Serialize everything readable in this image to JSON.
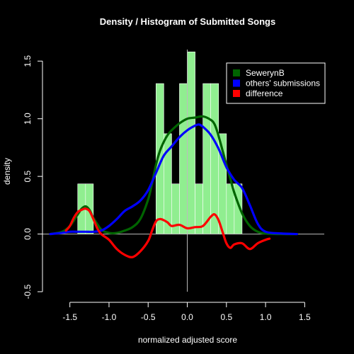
{
  "chart_data": {
    "type": "histogram",
    "title": "Density / Histogram of Submitted Songs",
    "xlabel": "normalized adjusted score",
    "ylabel": "density",
    "xlim": [
      -1.85,
      1.75
    ],
    "ylim": [
      -0.5,
      1.6
    ],
    "x_ticks": [
      -1.5,
      -1.0,
      -0.5,
      0.0,
      0.5,
      1.0,
      1.5
    ],
    "x_tick_labels": [
      "-1.5",
      "-1.0",
      "-0.5",
      "0.0",
      "0.5",
      "1.0",
      "1.5"
    ],
    "y_ticks": [
      -0.5,
      0.0,
      0.5,
      1.0,
      1.5
    ],
    "y_tick_labels": [
      "-0.5",
      "0.0",
      "0.5",
      "1.0",
      "1.5"
    ],
    "histogram": {
      "color": "#90EE90",
      "bin_width": 0.1,
      "bins": [
        {
          "x0": -1.4,
          "x1": -1.3,
          "density": 0.435
        },
        {
          "x0": -1.3,
          "x1": -1.2,
          "density": 0.435
        },
        {
          "x0": -0.4,
          "x1": -0.3,
          "density": 1.305
        },
        {
          "x0": -0.3,
          "x1": -0.2,
          "density": 0.87
        },
        {
          "x0": -0.2,
          "x1": -0.1,
          "density": 0.435
        },
        {
          "x0": -0.1,
          "x1": 0.0,
          "density": 1.305
        },
        {
          "x0": 0.0,
          "x1": 0.1,
          "density": 1.58
        },
        {
          "x0": 0.1,
          "x1": 0.2,
          "density": 0.435
        },
        {
          "x0": 0.2,
          "x1": 0.3,
          "density": 1.305
        },
        {
          "x0": 0.3,
          "x1": 0.4,
          "density": 1.305
        },
        {
          "x0": 0.4,
          "x1": 0.5,
          "density": 0.87
        },
        {
          "x0": 0.5,
          "x1": 0.6,
          "density": 0.435
        },
        {
          "x0": 0.6,
          "x1": 0.7,
          "density": 0.435
        }
      ]
    },
    "series": [
      {
        "name": "SewerynB",
        "color": "#006400",
        "x": [
          -1.75,
          -1.6,
          -1.5,
          -1.4,
          -1.35,
          -1.3,
          -1.25,
          -1.2,
          -1.1,
          -1.0,
          -0.9,
          -0.8,
          -0.7,
          -0.6,
          -0.5,
          -0.45,
          -0.4,
          -0.35,
          -0.3,
          -0.25,
          -0.2,
          -0.1,
          0.0,
          0.1,
          0.2,
          0.3,
          0.35,
          0.4,
          0.5,
          0.55,
          0.6,
          0.7,
          0.8,
          0.9,
          1.0,
          1.2,
          1.4
        ],
        "y": [
          0.0,
          0.02,
          0.07,
          0.17,
          0.22,
          0.24,
          0.21,
          0.14,
          0.04,
          0.01,
          0.01,
          0.03,
          0.06,
          0.13,
          0.3,
          0.44,
          0.6,
          0.72,
          0.8,
          0.86,
          0.9,
          0.96,
          1.0,
          1.01,
          1.02,
          0.99,
          0.95,
          0.85,
          0.6,
          0.48,
          0.36,
          0.18,
          0.07,
          0.02,
          0.005,
          0.0,
          0.0
        ]
      },
      {
        "name": "others' submissions",
        "color": "#0000FF",
        "x": [
          -1.75,
          -1.6,
          -1.5,
          -1.4,
          -1.3,
          -1.2,
          -1.1,
          -1.0,
          -0.9,
          -0.8,
          -0.7,
          -0.6,
          -0.5,
          -0.4,
          -0.3,
          -0.2,
          -0.1,
          0.0,
          0.1,
          0.15,
          0.2,
          0.3,
          0.4,
          0.5,
          0.6,
          0.7,
          0.8,
          0.9,
          1.0,
          1.2,
          1.4
        ],
        "y": [
          0.0,
          0.01,
          0.02,
          0.02,
          0.02,
          0.02,
          0.03,
          0.07,
          0.13,
          0.2,
          0.24,
          0.29,
          0.38,
          0.53,
          0.68,
          0.76,
          0.84,
          0.9,
          0.94,
          0.95,
          0.93,
          0.86,
          0.74,
          0.58,
          0.47,
          0.4,
          0.25,
          0.09,
          0.02,
          0.005,
          0.0
        ]
      },
      {
        "name": "difference",
        "color": "#FF0000",
        "x": [
          -1.55,
          -1.5,
          -1.45,
          -1.4,
          -1.35,
          -1.3,
          -1.25,
          -1.2,
          -1.15,
          -1.1,
          -1.0,
          -0.9,
          -0.8,
          -0.7,
          -0.6,
          -0.5,
          -0.45,
          -0.4,
          -0.35,
          -0.3,
          -0.25,
          -0.2,
          -0.1,
          0.0,
          0.1,
          0.2,
          0.3,
          0.35,
          0.4,
          0.45,
          0.5,
          0.55,
          0.6,
          0.7,
          0.8,
          0.9,
          1.0,
          1.05
        ],
        "y": [
          0.03,
          0.07,
          0.14,
          0.19,
          0.21,
          0.22,
          0.2,
          0.13,
          0.05,
          0.0,
          -0.05,
          -0.13,
          -0.18,
          -0.2,
          -0.15,
          -0.06,
          0.03,
          0.11,
          0.13,
          0.12,
          0.1,
          0.07,
          0.08,
          0.05,
          0.06,
          0.07,
          0.15,
          0.17,
          0.12,
          0.02,
          -0.08,
          -0.12,
          -0.09,
          -0.08,
          -0.13,
          -0.08,
          -0.05,
          -0.04
        ]
      }
    ],
    "zero_lines": true,
    "legend": {
      "position": "top-right",
      "entries": [
        {
          "label": "SewerynB",
          "color": "#006400"
        },
        {
          "label": "others' submissions",
          "color": "#0000FF"
        },
        {
          "label": "difference",
          "color": "#FF0000"
        }
      ]
    },
    "grid": false
  }
}
